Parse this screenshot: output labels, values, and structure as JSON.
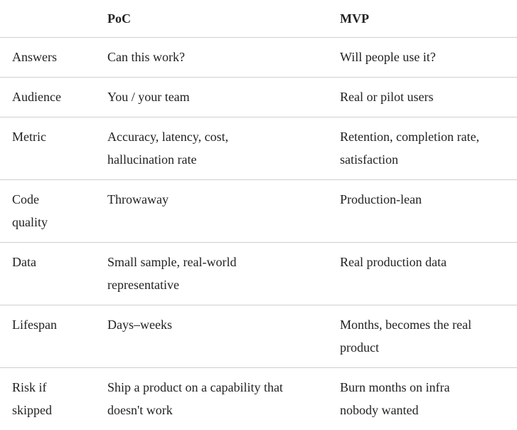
{
  "table": {
    "columns": [
      "PoC",
      "MVP"
    ],
    "rows": [
      [
        [
          "Answers"
        ],
        [
          "Can this work?"
        ],
        [
          "Will people use it?"
        ]
      ],
      [
        [
          "Audience"
        ],
        [
          "You / your team"
        ],
        [
          "Real or pilot users"
        ]
      ],
      [
        [
          "Metric"
        ],
        [
          "Accuracy, latency, cost,",
          "hallucination rate"
        ],
        [
          "Retention, completion rate,",
          "satisfaction"
        ]
      ],
      [
        [
          "Code",
          "quality"
        ],
        [
          "Throwaway"
        ],
        [
          "Production-lean"
        ]
      ],
      [
        [
          "Data"
        ],
        [
          "Small sample, real-world",
          "representative"
        ],
        [
          "Real production data"
        ]
      ],
      [
        [
          "Lifespan"
        ],
        [
          "Days–weeks"
        ],
        [
          "Months, becomes the real",
          "product"
        ]
      ],
      [
        [
          "Risk if",
          "skipped"
        ],
        [
          "Ship a product on a capability that",
          "doesn't work"
        ],
        [
          "Burn months on infra",
          "nobody wanted"
        ]
      ]
    ]
  }
}
